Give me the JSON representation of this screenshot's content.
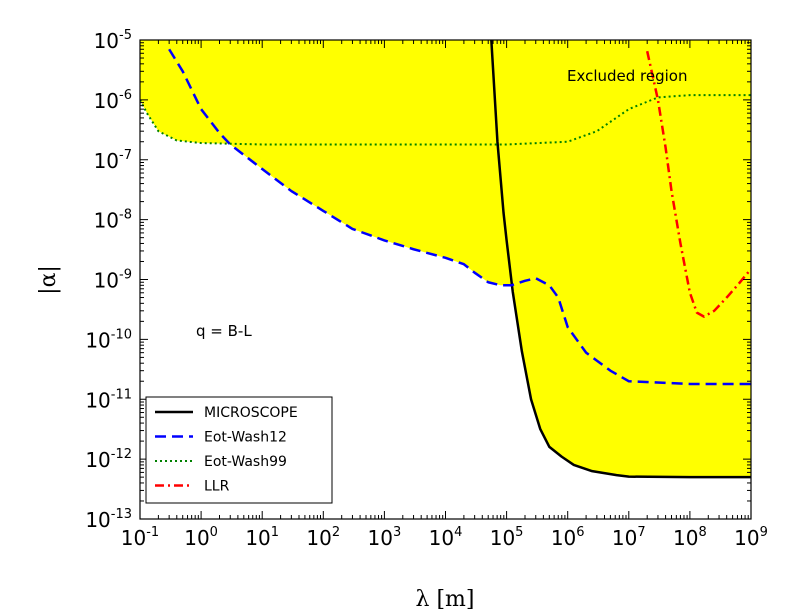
{
  "chart_data": {
    "type": "line",
    "xlabel": "λ [m]",
    "ylabel": "|α|",
    "x_scale": "log",
    "y_scale": "log",
    "xlim": [
      0.1,
      1000000000
    ],
    "ylim": [
      1e-13,
      1e-05
    ],
    "grid": false,
    "legend_position": "lower-left",
    "fill_color": "#ffff00",
    "x_ticks": [
      {
        "base": "10",
        "exp": "-1",
        "value": 0.1
      },
      {
        "base": "10",
        "exp": "0",
        "value": 1
      },
      {
        "base": "10",
        "exp": "1",
        "value": 10
      },
      {
        "base": "10",
        "exp": "2",
        "value": 100
      },
      {
        "base": "10",
        "exp": "3",
        "value": 1000
      },
      {
        "base": "10",
        "exp": "4",
        "value": 10000
      },
      {
        "base": "10",
        "exp": "5",
        "value": 100000
      },
      {
        "base": "10",
        "exp": "6",
        "value": 1000000
      },
      {
        "base": "10",
        "exp": "7",
        "value": 10000000
      },
      {
        "base": "10",
        "exp": "8",
        "value": 100000000
      },
      {
        "base": "10",
        "exp": "9",
        "value": 1000000000
      }
    ],
    "y_ticks": [
      {
        "base": "10",
        "exp": "-13",
        "value": 1e-13
      },
      {
        "base": "10",
        "exp": "-12",
        "value": 1e-12
      },
      {
        "base": "10",
        "exp": "-11",
        "value": 1e-11
      },
      {
        "base": "10",
        "exp": "-10",
        "value": 1e-10
      },
      {
        "base": "10",
        "exp": "-9",
        "value": 1e-09
      },
      {
        "base": "10",
        "exp": "-8",
        "value": 1e-08
      },
      {
        "base": "10",
        "exp": "-7",
        "value": 1e-07
      },
      {
        "base": "10",
        "exp": "-6",
        "value": 1e-06
      },
      {
        "base": "10",
        "exp": "-5",
        "value": 1e-05
      }
    ],
    "annotations": {
      "excluded": "Excluded region",
      "charge": "q = B-L"
    },
    "series": [
      {
        "name": "MICROSCOPE",
        "color": "#000000",
        "dash": "solid",
        "points": [
          [
            56234,
            1e-05
          ],
          [
            70795,
            2e-07
          ],
          [
            89125,
            1.3e-08
          ],
          [
            100000,
            4.5e-09
          ],
          [
            125893,
            6.3e-10
          ],
          [
            177828,
            6.3e-11
          ],
          [
            251189,
            1e-11
          ],
          [
            354813,
            3.2e-12
          ],
          [
            501187,
            1.6e-12
          ],
          [
            794328,
            1.1e-12
          ],
          [
            1258925,
            8e-13
          ],
          [
            2511886,
            6.3e-13
          ],
          [
            6309573,
            5.4e-13
          ],
          [
            10000000,
            5.1e-13
          ],
          [
            100000000,
            5e-13
          ],
          [
            1000000000,
            5e-13
          ]
        ]
      },
      {
        "name": "Eot-Wash12",
        "color": "#0000ff",
        "dash": "dashed",
        "points": [
          [
            0.3,
            7e-06
          ],
          [
            0.5,
            3e-06
          ],
          [
            1,
            7e-07
          ],
          [
            2,
            2.8e-07
          ],
          [
            3,
            1.8e-07
          ],
          [
            10,
            7e-08
          ],
          [
            30,
            3e-08
          ],
          [
            100,
            1.4e-08
          ],
          [
            300,
            7e-09
          ],
          [
            1000,
            4.5e-09
          ],
          [
            3000,
            3.2e-09
          ],
          [
            10000,
            2.3e-09
          ],
          [
            20000,
            1.8e-09
          ],
          [
            30000,
            1.3e-09
          ],
          [
            50000,
            9e-10
          ],
          [
            80000,
            8e-10
          ],
          [
            120000,
            8e-10
          ],
          [
            200000,
            9.5e-10
          ],
          [
            300000,
            1.05e-09
          ],
          [
            500000,
            8e-10
          ],
          [
            700000,
            5e-10
          ],
          [
            1000000,
            1.6e-10
          ],
          [
            2000000,
            6e-11
          ],
          [
            5000000,
            3e-11
          ],
          [
            10000000,
            2e-11
          ],
          [
            100000000,
            1.8e-11
          ],
          [
            1000000000,
            1.8e-11
          ]
        ]
      },
      {
        "name": "Eot-Wash99",
        "color": "#008000",
        "dash": "dotted",
        "points": [
          [
            0.1,
            1e-06
          ],
          [
            0.13,
            6e-07
          ],
          [
            0.2,
            3e-07
          ],
          [
            0.4,
            2.1e-07
          ],
          [
            1,
            1.9e-07
          ],
          [
            10,
            1.8e-07
          ],
          [
            1000,
            1.8e-07
          ],
          [
            100000,
            1.8e-07
          ],
          [
            1000000,
            2e-07
          ],
          [
            3000000,
            3e-07
          ],
          [
            10000000,
            7e-07
          ],
          [
            30000000,
            1.1e-06
          ],
          [
            100000000,
            1.2e-06
          ],
          [
            1000000000,
            1.2e-06
          ]
        ]
      },
      {
        "name": "LLR",
        "color": "#ff0000",
        "dash": "dashdot",
        "points": [
          [
            20000000,
            6.5e-06
          ],
          [
            30000000,
            1e-06
          ],
          [
            40000000,
            1.6e-07
          ],
          [
            50000000,
            3e-08
          ],
          [
            70000000,
            4e-09
          ],
          [
            100000000,
            6e-10
          ],
          [
            130000000,
            2.8e-10
          ],
          [
            170000000,
            2.4e-10
          ],
          [
            250000000,
            3e-10
          ],
          [
            400000000,
            5e-10
          ],
          [
            600000000,
            8e-10
          ],
          [
            1000000000,
            1.5e-09
          ]
        ]
      }
    ]
  }
}
